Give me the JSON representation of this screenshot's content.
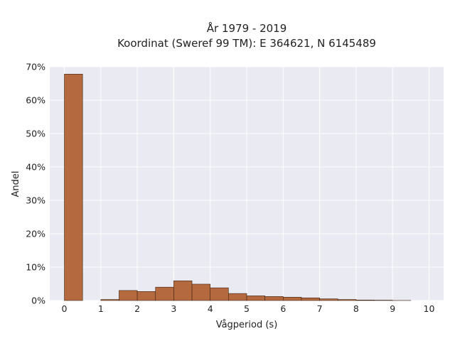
{
  "chart_data": {
    "type": "bar",
    "title_line1": "År 1979 - 2019",
    "title_line2": "Koordinat (Sweref 99 TM): E 364621, N 6145489",
    "xlabel": "Vågperiod (s)",
    "ylabel": "Andel",
    "bin_width": 0.5,
    "x": [
      0,
      0.5,
      1,
      1.5,
      2,
      2.5,
      3,
      3.5,
      4,
      4.5,
      5,
      5.5,
      6,
      6.5,
      7,
      7.5,
      8,
      8.5,
      9,
      9.5
    ],
    "values": [
      67.8,
      0,
      0.3,
      3.0,
      2.7,
      4.0,
      5.9,
      4.9,
      3.8,
      2.1,
      1.4,
      1.2,
      1.0,
      0.8,
      0.5,
      0.3,
      0.15,
      0.1,
      0.02,
      0
    ],
    "xlim": [
      -0.4,
      10.4
    ],
    "ylim": [
      0,
      70
    ],
    "xticks": [
      "0",
      "1",
      "2",
      "3",
      "4",
      "5",
      "6",
      "7",
      "8",
      "9",
      "10"
    ],
    "yticks": [
      "0%",
      "10%",
      "20%",
      "30%",
      "40%",
      "50%",
      "60%",
      "70%"
    ],
    "grid": true,
    "colors": {
      "bar": "#b5693f",
      "bar_edge": "#3a2414",
      "plot_bg": "#eaeaf2",
      "grid": "#ffffff"
    }
  }
}
